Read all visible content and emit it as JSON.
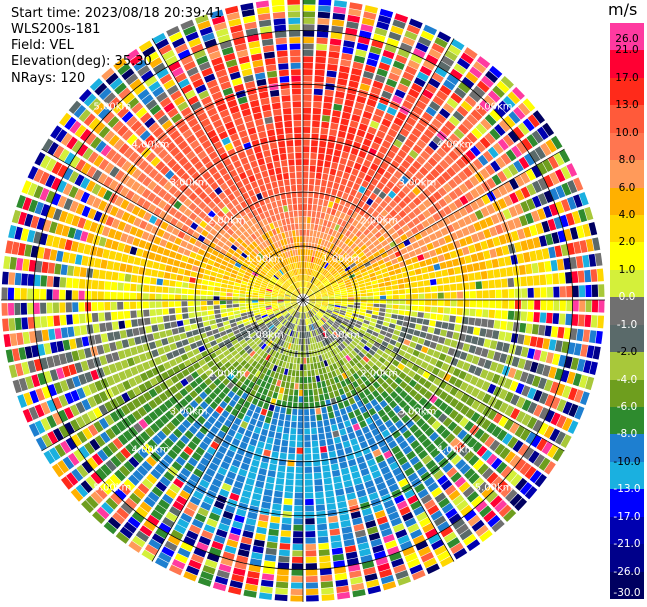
{
  "info": {
    "start_time": "Start time: 2023/08/18 20:39:41",
    "site": "WLS200s-181",
    "field": "Field: VEL",
    "elevation": "Elevation(deg): 35.30",
    "nrays": "NRays: 120"
  },
  "chart_data": {
    "type": "heatmap",
    "projection": "polar PPI",
    "field": "VEL",
    "nrays": 120,
    "range_rings_km": [
      1.0,
      2.0,
      3.0,
      4.0,
      5.0
    ],
    "range_ring_labels": [
      "1.00km",
      "2.00km",
      "3.00km",
      "4.00km",
      "5.00km"
    ],
    "colorbar": {
      "unit": "m/s",
      "ticks": [
        "26.0",
        "21.0",
        "17.0",
        "13.0",
        "10.0",
        "8.0",
        "6.0",
        "4.0",
        "2.0",
        "1.0",
        "0.0",
        "-1.0",
        "-2.0",
        "-4.0",
        "-6.0",
        "-8.0",
        "-10.0",
        "-13.0",
        "-17.0",
        "-21.0",
        "-26.0",
        "-30.0"
      ],
      "colors": [
        "#ff3aa0",
        "#ff0033",
        "#ff2a1a",
        "#ff5a3a",
        "#ff7650",
        "#ff9a5a",
        "#ffb000",
        "#ffd700",
        "#ffff00",
        "#d4f03a",
        "#707070",
        "#5a6a6a",
        "#a8c83a",
        "#6e9e1e",
        "#2e8b2e",
        "#1e7fd0",
        "#1ab0e0",
        "#0000ff",
        "#0000b0",
        "#00008a",
        "#000060"
      ],
      "range": [
        -30,
        30
      ]
    }
  }
}
